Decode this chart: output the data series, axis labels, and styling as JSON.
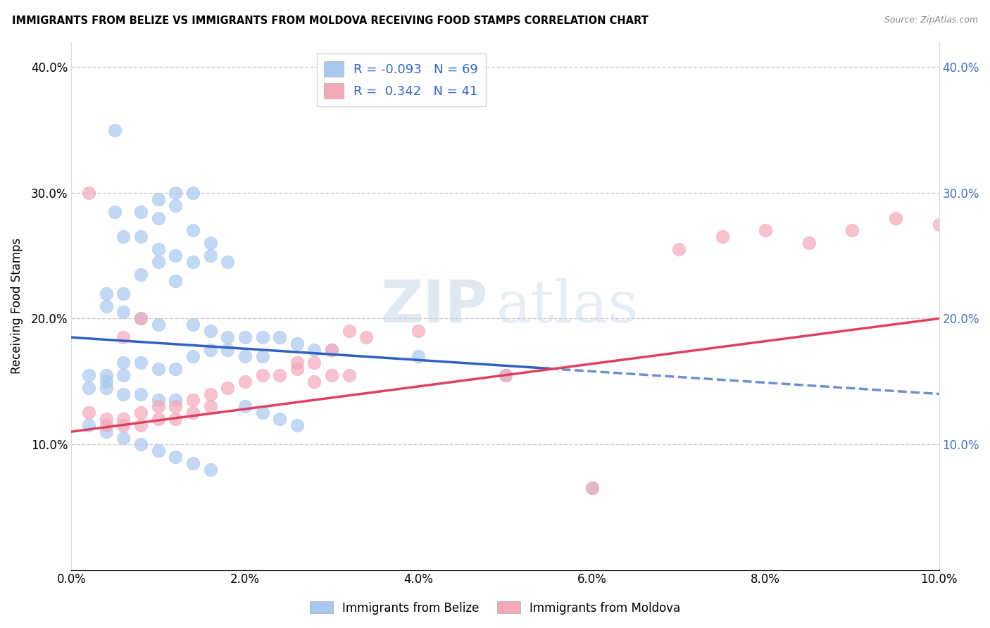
{
  "title": "IMMIGRANTS FROM BELIZE VS IMMIGRANTS FROM MOLDOVA RECEIVING FOOD STAMPS CORRELATION CHART",
  "source": "Source: ZipAtlas.com",
  "ylabel": "Receiving Food Stamps",
  "xlim": [
    0.0,
    0.1
  ],
  "ylim": [
    0.0,
    0.42
  ],
  "xtick_labels": [
    "0.0%",
    "2.0%",
    "4.0%",
    "6.0%",
    "8.0%",
    "10.0%"
  ],
  "xtick_vals": [
    0.0,
    0.02,
    0.04,
    0.06,
    0.08,
    0.1
  ],
  "ytick_labels": [
    "10.0%",
    "20.0%",
    "30.0%",
    "40.0%"
  ],
  "ytick_vals": [
    0.1,
    0.2,
    0.3,
    0.4
  ],
  "belize_color": "#a8c8f0",
  "moldova_color": "#f4a8b8",
  "belize_line_color": "#3060c0",
  "moldova_line_color": "#e04060",
  "belize_line_solid_end": 0.055,
  "legend_R_belize": "-0.093",
  "legend_N_belize": "69",
  "legend_R_moldova": "0.342",
  "legend_N_moldova": "41",
  "belize_scatter_x": [
    0.005,
    0.01,
    0.005,
    0.008,
    0.01,
    0.012,
    0.014,
    0.012,
    0.014,
    0.016,
    0.008,
    0.01,
    0.006,
    0.012,
    0.016,
    0.018,
    0.014,
    0.01,
    0.008,
    0.012,
    0.006,
    0.004,
    0.004,
    0.006,
    0.008,
    0.01,
    0.014,
    0.016,
    0.018,
    0.02,
    0.022,
    0.024,
    0.026,
    0.028,
    0.03,
    0.016,
    0.018,
    0.02,
    0.022,
    0.014,
    0.006,
    0.008,
    0.01,
    0.012,
    0.004,
    0.006,
    0.002,
    0.004,
    0.04,
    0.05,
    0.002,
    0.004,
    0.006,
    0.008,
    0.01,
    0.012,
    0.02,
    0.022,
    0.024,
    0.026,
    0.002,
    0.004,
    0.006,
    0.008,
    0.01,
    0.012,
    0.014,
    0.016,
    0.06
  ],
  "belize_scatter_y": [
    0.35,
    0.295,
    0.285,
    0.285,
    0.28,
    0.3,
    0.3,
    0.29,
    0.27,
    0.26,
    0.265,
    0.255,
    0.265,
    0.25,
    0.25,
    0.245,
    0.245,
    0.245,
    0.235,
    0.23,
    0.22,
    0.22,
    0.21,
    0.205,
    0.2,
    0.195,
    0.195,
    0.19,
    0.185,
    0.185,
    0.185,
    0.185,
    0.18,
    0.175,
    0.175,
    0.175,
    0.175,
    0.17,
    0.17,
    0.17,
    0.165,
    0.165,
    0.16,
    0.16,
    0.155,
    0.155,
    0.155,
    0.15,
    0.17,
    0.155,
    0.145,
    0.145,
    0.14,
    0.14,
    0.135,
    0.135,
    0.13,
    0.125,
    0.12,
    0.115,
    0.115,
    0.11,
    0.105,
    0.1,
    0.095,
    0.09,
    0.085,
    0.08,
    0.065
  ],
  "moldova_scatter_x": [
    0.002,
    0.004,
    0.004,
    0.006,
    0.006,
    0.008,
    0.008,
    0.01,
    0.01,
    0.012,
    0.012,
    0.014,
    0.014,
    0.016,
    0.016,
    0.018,
    0.02,
    0.022,
    0.024,
    0.026,
    0.028,
    0.03,
    0.032,
    0.03,
    0.028,
    0.026,
    0.034,
    0.04,
    0.05,
    0.002,
    0.006,
    0.008,
    0.032,
    0.08,
    0.09,
    0.085,
    0.095,
    0.1,
    0.075,
    0.07,
    0.06
  ],
  "moldova_scatter_y": [
    0.125,
    0.12,
    0.115,
    0.12,
    0.115,
    0.125,
    0.115,
    0.13,
    0.12,
    0.13,
    0.12,
    0.135,
    0.125,
    0.14,
    0.13,
    0.145,
    0.15,
    0.155,
    0.155,
    0.16,
    0.15,
    0.155,
    0.155,
    0.175,
    0.165,
    0.165,
    0.185,
    0.19,
    0.155,
    0.3,
    0.185,
    0.2,
    0.19,
    0.27,
    0.27,
    0.26,
    0.28,
    0.275,
    0.265,
    0.255,
    0.065
  ],
  "watermark_zip": "ZIP",
  "watermark_atlas": "atlas",
  "background_color": "#ffffff",
  "grid_color": "#cccccc"
}
